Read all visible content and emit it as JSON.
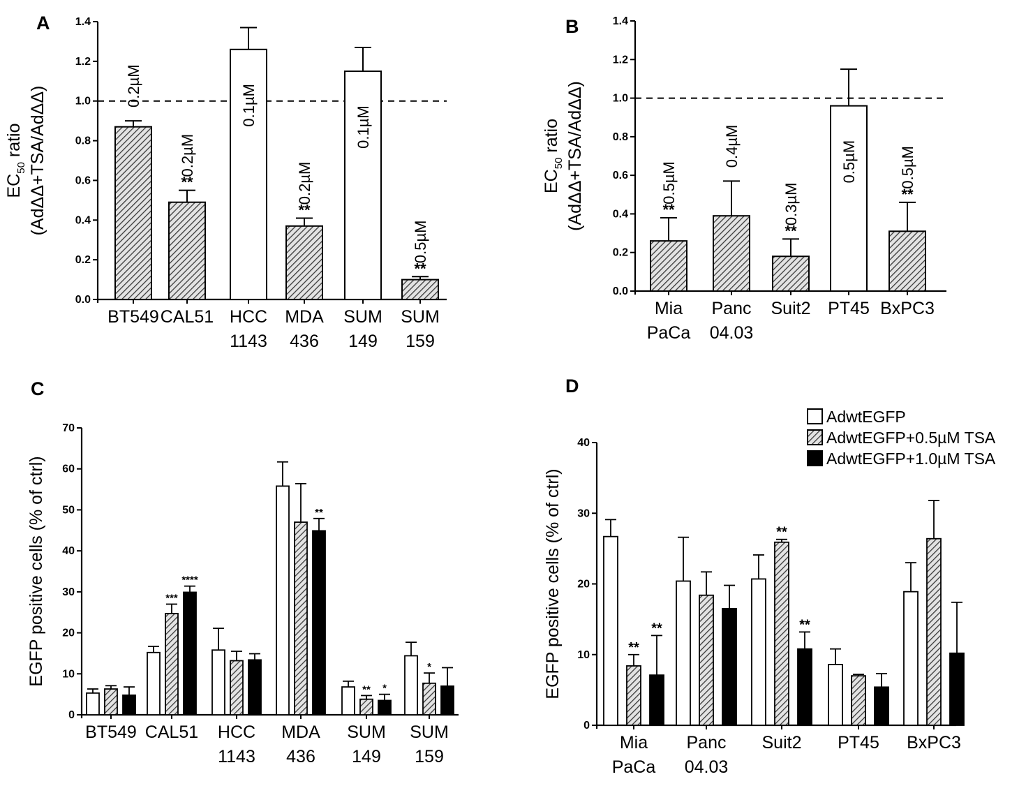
{
  "chart_data": [
    {
      "panel": "A",
      "type": "bar",
      "ylabel": {
        "main": "EC",
        "sub": "50",
        "suffix": " ratio",
        "line2": "(AdΔΔ+TSA/AdΔΔ)"
      },
      "yticks": [
        "0.0",
        "0.2",
        "0.4",
        "0.6",
        "0.8",
        "1.0",
        "1.2",
        "1.4"
      ],
      "ylim": [
        0,
        1.4
      ],
      "reference_line": 1.0,
      "categories": [
        {
          "line1": "BT549",
          "line2": ""
        },
        {
          "line1": "CAL51",
          "line2": ""
        },
        {
          "line1": "HCC",
          "line2": "1143"
        },
        {
          "line1": "MDA",
          "line2": "436"
        },
        {
          "line1": "SUM",
          "line2": "149"
        },
        {
          "line1": "SUM",
          "line2": "159"
        }
      ],
      "values": [
        0.87,
        0.49,
        1.26,
        0.37,
        1.15,
        0.1
      ],
      "errors": [
        0.03,
        0.06,
        0.11,
        0.04,
        0.12,
        0.015
      ],
      "fills": [
        "hatch",
        "hatch",
        "white",
        "hatch",
        "white",
        "hatch"
      ],
      "concentration_labels": [
        "0.2µM",
        "0.2µM",
        "0.1µM",
        "0.2µM",
        "0.1µM",
        "0.5µM"
      ],
      "significance": [
        "",
        "**",
        "",
        "**",
        "",
        "**"
      ]
    },
    {
      "panel": "B",
      "type": "bar",
      "ylabel": {
        "main": "EC",
        "sub": "50",
        "suffix": " ratio",
        "line2": "(AdΔΔ+TSA/AdΔΔ)"
      },
      "yticks": [
        "0.0",
        "0.2",
        "0.4",
        "0.6",
        "0.8",
        "1.0",
        "1.2",
        "1.4"
      ],
      "ylim": [
        0,
        1.4
      ],
      "reference_line": 1.0,
      "categories": [
        {
          "line1": "Mia",
          "line2": "PaCa"
        },
        {
          "line1": "Panc",
          "line2": "04.03"
        },
        {
          "line1": "Suit2",
          "line2": ""
        },
        {
          "line1": "PT45",
          "line2": ""
        },
        {
          "line1": "BxPC3",
          "line2": ""
        }
      ],
      "values": [
        0.26,
        0.39,
        0.18,
        0.96,
        0.31
      ],
      "errors": [
        0.12,
        0.18,
        0.09,
        0.19,
        0.15
      ],
      "fills": [
        "hatch",
        "hatch",
        "hatch",
        "white",
        "hatch"
      ],
      "concentration_labels": [
        "0.5µM",
        "0.4µM",
        "0.3µM",
        "0.5µM",
        "0.5µM"
      ],
      "significance": [
        "**",
        "",
        "**",
        "",
        "**"
      ]
    },
    {
      "panel": "C",
      "type": "bar",
      "ylabel": "EGFP positive cells (% of ctrl)",
      "yticks": [
        "0",
        "10",
        "20",
        "30",
        "40",
        "50",
        "60",
        "70"
      ],
      "ylim": [
        0,
        70
      ],
      "categories": [
        {
          "line1": "BT549",
          "line2": ""
        },
        {
          "line1": "CAL51",
          "line2": ""
        },
        {
          "line1": "HCC",
          "line2": "1143"
        },
        {
          "line1": "MDA",
          "line2": "436"
        },
        {
          "line1": "SUM",
          "line2": "149"
        },
        {
          "line1": "SUM",
          "line2": "159"
        }
      ],
      "series": [
        {
          "name": "AdwtEGFP",
          "fill": "white",
          "values": [
            5.3,
            15.2,
            15.8,
            55.8,
            6.8,
            14.4
          ],
          "errors": [
            1.0,
            1.5,
            5.3,
            5.9,
            1.4,
            3.3
          ],
          "significance": [
            "",
            "",
            "",
            "",
            "",
            ""
          ]
        },
        {
          "name": "AdwtEGFP+0.5µM TSA",
          "fill": "hatch",
          "values": [
            6.3,
            24.7,
            13.2,
            47.0,
            3.8,
            7.7
          ],
          "errors": [
            0.8,
            2.3,
            2.3,
            9.4,
            0.9,
            2.5
          ],
          "significance": [
            "",
            "***",
            "",
            "",
            "**",
            "*"
          ]
        },
        {
          "name": "AdwtEGFP+1.0µM TSA",
          "fill": "black",
          "values": [
            4.8,
            29.9,
            13.4,
            44.9,
            3.5,
            7.0
          ],
          "errors": [
            2.0,
            1.5,
            1.5,
            3.0,
            1.5,
            4.5
          ],
          "significance": [
            "",
            "****",
            "",
            "**",
            "*",
            ""
          ]
        }
      ]
    },
    {
      "panel": "D",
      "type": "bar",
      "ylabel": "EGFP positive cells (% of ctrl)",
      "yticks": [
        "0",
        "10",
        "20",
        "30",
        "40"
      ],
      "ylim": [
        0,
        40
      ],
      "categories": [
        {
          "line1": "Mia",
          "line2": "PaCa"
        },
        {
          "line1": "Panc",
          "line2": "04.03"
        },
        {
          "line1": "Suit2",
          "line2": ""
        },
        {
          "line1": "PT45",
          "line2": ""
        },
        {
          "line1": "BxPC3",
          "line2": ""
        }
      ],
      "series": [
        {
          "name": "AdwtEGFP",
          "fill": "white",
          "values": [
            26.7,
            20.4,
            20.7,
            8.6,
            18.9
          ],
          "errors": [
            2.4,
            6.2,
            3.4,
            2.2,
            4.1
          ],
          "significance": [
            "",
            "",
            "",
            "",
            ""
          ]
        },
        {
          "name": "AdwtEGFP+0.5µM TSA",
          "fill": "hatch",
          "values": [
            8.4,
            18.4,
            25.9,
            7.0,
            26.4
          ],
          "errors": [
            1.6,
            3.3,
            0.4,
            0.2,
            5.4
          ],
          "significance": [
            "**",
            "",
            "**",
            "",
            ""
          ]
        },
        {
          "name": "AdwtEGFP+1.0µM TSA",
          "fill": "black",
          "values": [
            7.1,
            16.5,
            10.8,
            5.4,
            10.2
          ],
          "errors": [
            5.6,
            3.3,
            2.4,
            1.9,
            7.2
          ],
          "significance": [
            "**",
            "",
            "**",
            "",
            ""
          ]
        }
      ],
      "legend": [
        "AdwtEGFP",
        "AdwtEGFP+0.5µM TSA",
        "AdwtEGFP+1.0µM TSA"
      ]
    }
  ]
}
